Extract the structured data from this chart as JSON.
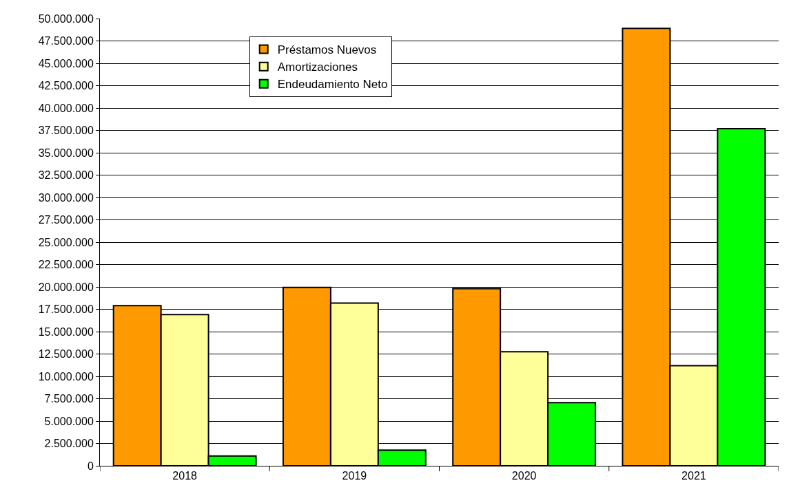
{
  "chart_data": {
    "type": "bar",
    "categories": [
      "2018",
      "2019",
      "2020",
      "2021"
    ],
    "series": [
      {
        "name": "Préstamos Nuevos",
        "color": "#ff9900",
        "values": [
          17900000,
          19950000,
          19800000,
          48900000
        ]
      },
      {
        "name": "Amortizaciones",
        "color": "#ffff99",
        "values": [
          16900000,
          18200000,
          12750000,
          11200000
        ]
      },
      {
        "name": "Endeudamiento Neto",
        "color": "#00ff00",
        "values": [
          1100000,
          1750000,
          7050000,
          37700000
        ]
      }
    ],
    "ylim": [
      0,
      50000000
    ],
    "yticks": [
      0,
      {
        "value": 2500000,
        "label": "2.500.000"
      },
      {
        "value": 5000000,
        "label": "5.000.000"
      },
      {
        "value": 7500000,
        "label": "7.500.000"
      },
      {
        "value": 10000000,
        "label": "10.000.000"
      },
      {
        "value": 12500000,
        "label": "12.500.000"
      },
      {
        "value": 15000000,
        "label": "15.000.000"
      },
      {
        "value": 17500000,
        "label": "17.500.000"
      },
      {
        "value": 20000000,
        "label": "20.000.000"
      },
      {
        "value": 22500000,
        "label": "22.500.000"
      },
      {
        "value": 25000000,
        "label": "25.000.000"
      },
      {
        "value": 27500000,
        "label": "27.500.000"
      },
      {
        "value": 30000000,
        "label": "30.000.000"
      },
      {
        "value": 32500000,
        "label": "32.500.000"
      },
      {
        "value": 35000000,
        "label": "35.000.000"
      },
      {
        "value": 37500000,
        "label": "37.500.000"
      },
      {
        "value": 40000000,
        "label": "40.000.000"
      },
      {
        "value": 42500000,
        "label": "42.500.000"
      },
      {
        "value": 45000000,
        "label": "45.000.000"
      },
      {
        "value": 47500000,
        "label": "47.500.000"
      },
      {
        "value": 50000000,
        "label": "50.000.000"
      }
    ],
    "grid": "y",
    "legend": "top left"
  }
}
